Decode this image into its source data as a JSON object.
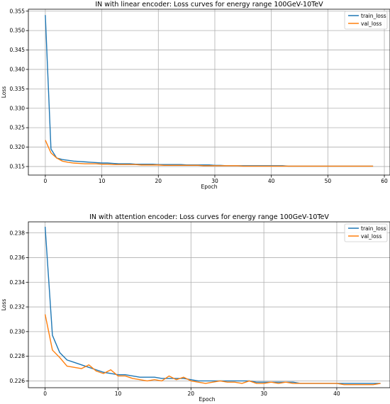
{
  "chart_data": [
    {
      "type": "line",
      "title": "IN with linear encoder: Loss curves for energy range 100GeV-10TeV",
      "xlabel": "Epoch",
      "ylabel": "Loss",
      "xlim": [
        -3,
        61
      ],
      "ylim": [
        0.3128,
        0.3555
      ],
      "xticks": [
        0,
        10,
        20,
        30,
        40,
        50,
        60
      ],
      "yticks": [
        0.315,
        0.32,
        0.325,
        0.33,
        0.335,
        0.34,
        0.345,
        0.35,
        0.355
      ],
      "ytick_labels": [
        "0.315",
        "0.320",
        "0.325",
        "0.330",
        "0.335",
        "0.340",
        "0.345",
        "0.350",
        "0.355"
      ],
      "grid": true,
      "legend": "top-right",
      "series": [
        {
          "name": "train_loss",
          "color": "#1f77b4",
          "x": [
            0,
            1,
            2,
            3,
            4,
            5,
            6,
            7,
            8,
            9,
            10,
            11,
            12,
            13,
            14,
            15,
            16,
            17,
            18,
            19,
            20,
            21,
            22,
            23,
            24,
            25,
            26,
            27,
            28,
            29,
            30,
            31,
            32,
            33,
            34,
            35,
            36,
            37,
            38,
            39,
            40,
            41,
            42,
            43,
            44,
            45,
            46,
            47,
            48,
            49,
            50,
            51,
            52,
            53,
            54,
            55,
            56,
            57,
            58
          ],
          "y": [
            0.354,
            0.3195,
            0.3172,
            0.3168,
            0.3166,
            0.3164,
            0.3163,
            0.3162,
            0.3161,
            0.316,
            0.3159,
            0.3159,
            0.3158,
            0.3157,
            0.3157,
            0.3157,
            0.3156,
            0.3156,
            0.3156,
            0.3156,
            0.3155,
            0.3155,
            0.3155,
            0.3155,
            0.3155,
            0.3154,
            0.3154,
            0.3154,
            0.3154,
            0.3154,
            0.3153,
            0.3153,
            0.3152,
            0.3152,
            0.3152,
            0.3152,
            0.3152,
            0.3152,
            0.3152,
            0.3152,
            0.3152,
            0.3152,
            0.3152,
            0.3151,
            0.3151,
            0.3151,
            0.3151,
            0.3151,
            0.3151,
            0.3151,
            0.3151,
            0.3151,
            0.3151,
            0.3151,
            0.3151,
            0.3151,
            0.3151,
            0.3151,
            0.3151
          ]
        },
        {
          "name": "val_loss",
          "color": "#ff7f0e",
          "x": [
            0,
            1,
            2,
            3,
            4,
            5,
            6,
            7,
            8,
            9,
            10,
            11,
            12,
            13,
            14,
            15,
            16,
            17,
            18,
            19,
            20,
            21,
            22,
            23,
            24,
            25,
            26,
            27,
            28,
            29,
            30,
            31,
            32,
            33,
            34,
            35,
            36,
            37,
            38,
            39,
            40,
            41,
            42,
            43,
            44,
            45,
            46,
            47,
            48,
            49,
            50,
            51,
            52,
            53,
            54,
            55,
            56,
            57,
            58
          ],
          "y": [
            0.3218,
            0.3185,
            0.3172,
            0.3164,
            0.3161,
            0.3159,
            0.3158,
            0.3157,
            0.3157,
            0.3157,
            0.3156,
            0.3156,
            0.3155,
            0.3155,
            0.3155,
            0.3155,
            0.3155,
            0.3154,
            0.3154,
            0.3154,
            0.3154,
            0.3153,
            0.3153,
            0.3153,
            0.3153,
            0.3153,
            0.3153,
            0.3153,
            0.3152,
            0.3152,
            0.3152,
            0.3152,
            0.3152,
            0.3152,
            0.3152,
            0.3151,
            0.3151,
            0.3151,
            0.3151,
            0.3151,
            0.3151,
            0.3151,
            0.3151,
            0.3151,
            0.3151,
            0.3151,
            0.3151,
            0.3151,
            0.3151,
            0.3151,
            0.3151,
            0.3151,
            0.3151,
            0.3151,
            0.3151,
            0.3151,
            0.3151,
            0.3151,
            0.3151
          ]
        }
      ]
    },
    {
      "type": "line",
      "title": "IN with attention encoder: Loss curves for energy range 100GeV-10TeV",
      "xlabel": "Epoch",
      "ylabel": "Loss",
      "xlim": [
        -2.3,
        47.3
      ],
      "ylim": [
        0.22545,
        0.2389
      ],
      "xticks": [
        0,
        10,
        20,
        30,
        40
      ],
      "yticks": [
        0.226,
        0.228,
        0.23,
        0.232,
        0.234,
        0.236,
        0.238
      ],
      "ytick_labels": [
        "0.226",
        "0.228",
        "0.230",
        "0.232",
        "0.234",
        "0.236",
        "0.238"
      ],
      "grid": true,
      "legend": "top-right",
      "series": [
        {
          "name": "train_loss",
          "color": "#1f77b4",
          "x": [
            0,
            1,
            2,
            3,
            4,
            5,
            6,
            7,
            8,
            9,
            10,
            11,
            12,
            13,
            14,
            15,
            16,
            17,
            18,
            19,
            20,
            21,
            22,
            23,
            24,
            25,
            26,
            27,
            28,
            29,
            30,
            31,
            32,
            33,
            34,
            35,
            36,
            37,
            38,
            39,
            40,
            41,
            42,
            43,
            44,
            45,
            46
          ],
          "y": [
            0.2385,
            0.2297,
            0.2283,
            0.2277,
            0.2275,
            0.2273,
            0.2271,
            0.2269,
            0.2267,
            0.2266,
            0.2265,
            0.2265,
            0.2264,
            0.2263,
            0.2263,
            0.2263,
            0.2262,
            0.2262,
            0.2262,
            0.2262,
            0.2261,
            0.226,
            0.226,
            0.226,
            0.226,
            0.226,
            0.226,
            0.226,
            0.226,
            0.2259,
            0.2259,
            0.2259,
            0.2259,
            0.2259,
            0.2259,
            0.2258,
            0.2258,
            0.2258,
            0.2258,
            0.2258,
            0.2258,
            0.2258,
            0.2258,
            0.2258,
            0.2258,
            0.2258,
            0.2258
          ]
        },
        {
          "name": "val_loss",
          "color": "#ff7f0e",
          "x": [
            0,
            1,
            2,
            3,
            4,
            5,
            6,
            7,
            8,
            9,
            10,
            11,
            12,
            13,
            14,
            15,
            16,
            17,
            18,
            19,
            20,
            21,
            22,
            23,
            24,
            25,
            26,
            27,
            28,
            29,
            30,
            31,
            32,
            33,
            34,
            35,
            36,
            37,
            38,
            39,
            40,
            41,
            42,
            43,
            44,
            45,
            46
          ],
          "y": [
            0.2314,
            0.2285,
            0.2279,
            0.2272,
            0.2271,
            0.227,
            0.2273,
            0.2268,
            0.2266,
            0.2269,
            0.2264,
            0.2264,
            0.2262,
            0.2261,
            0.226,
            0.2261,
            0.226,
            0.2264,
            0.2261,
            0.2263,
            0.226,
            0.2259,
            0.2258,
            0.2259,
            0.226,
            0.2259,
            0.2259,
            0.2258,
            0.226,
            0.2258,
            0.2258,
            0.2259,
            0.2258,
            0.2259,
            0.2258,
            0.2258,
            0.2258,
            0.2258,
            0.2258,
            0.2258,
            0.2258,
            0.2257,
            0.2257,
            0.2257,
            0.2257,
            0.2257,
            0.2258
          ]
        }
      ]
    }
  ]
}
